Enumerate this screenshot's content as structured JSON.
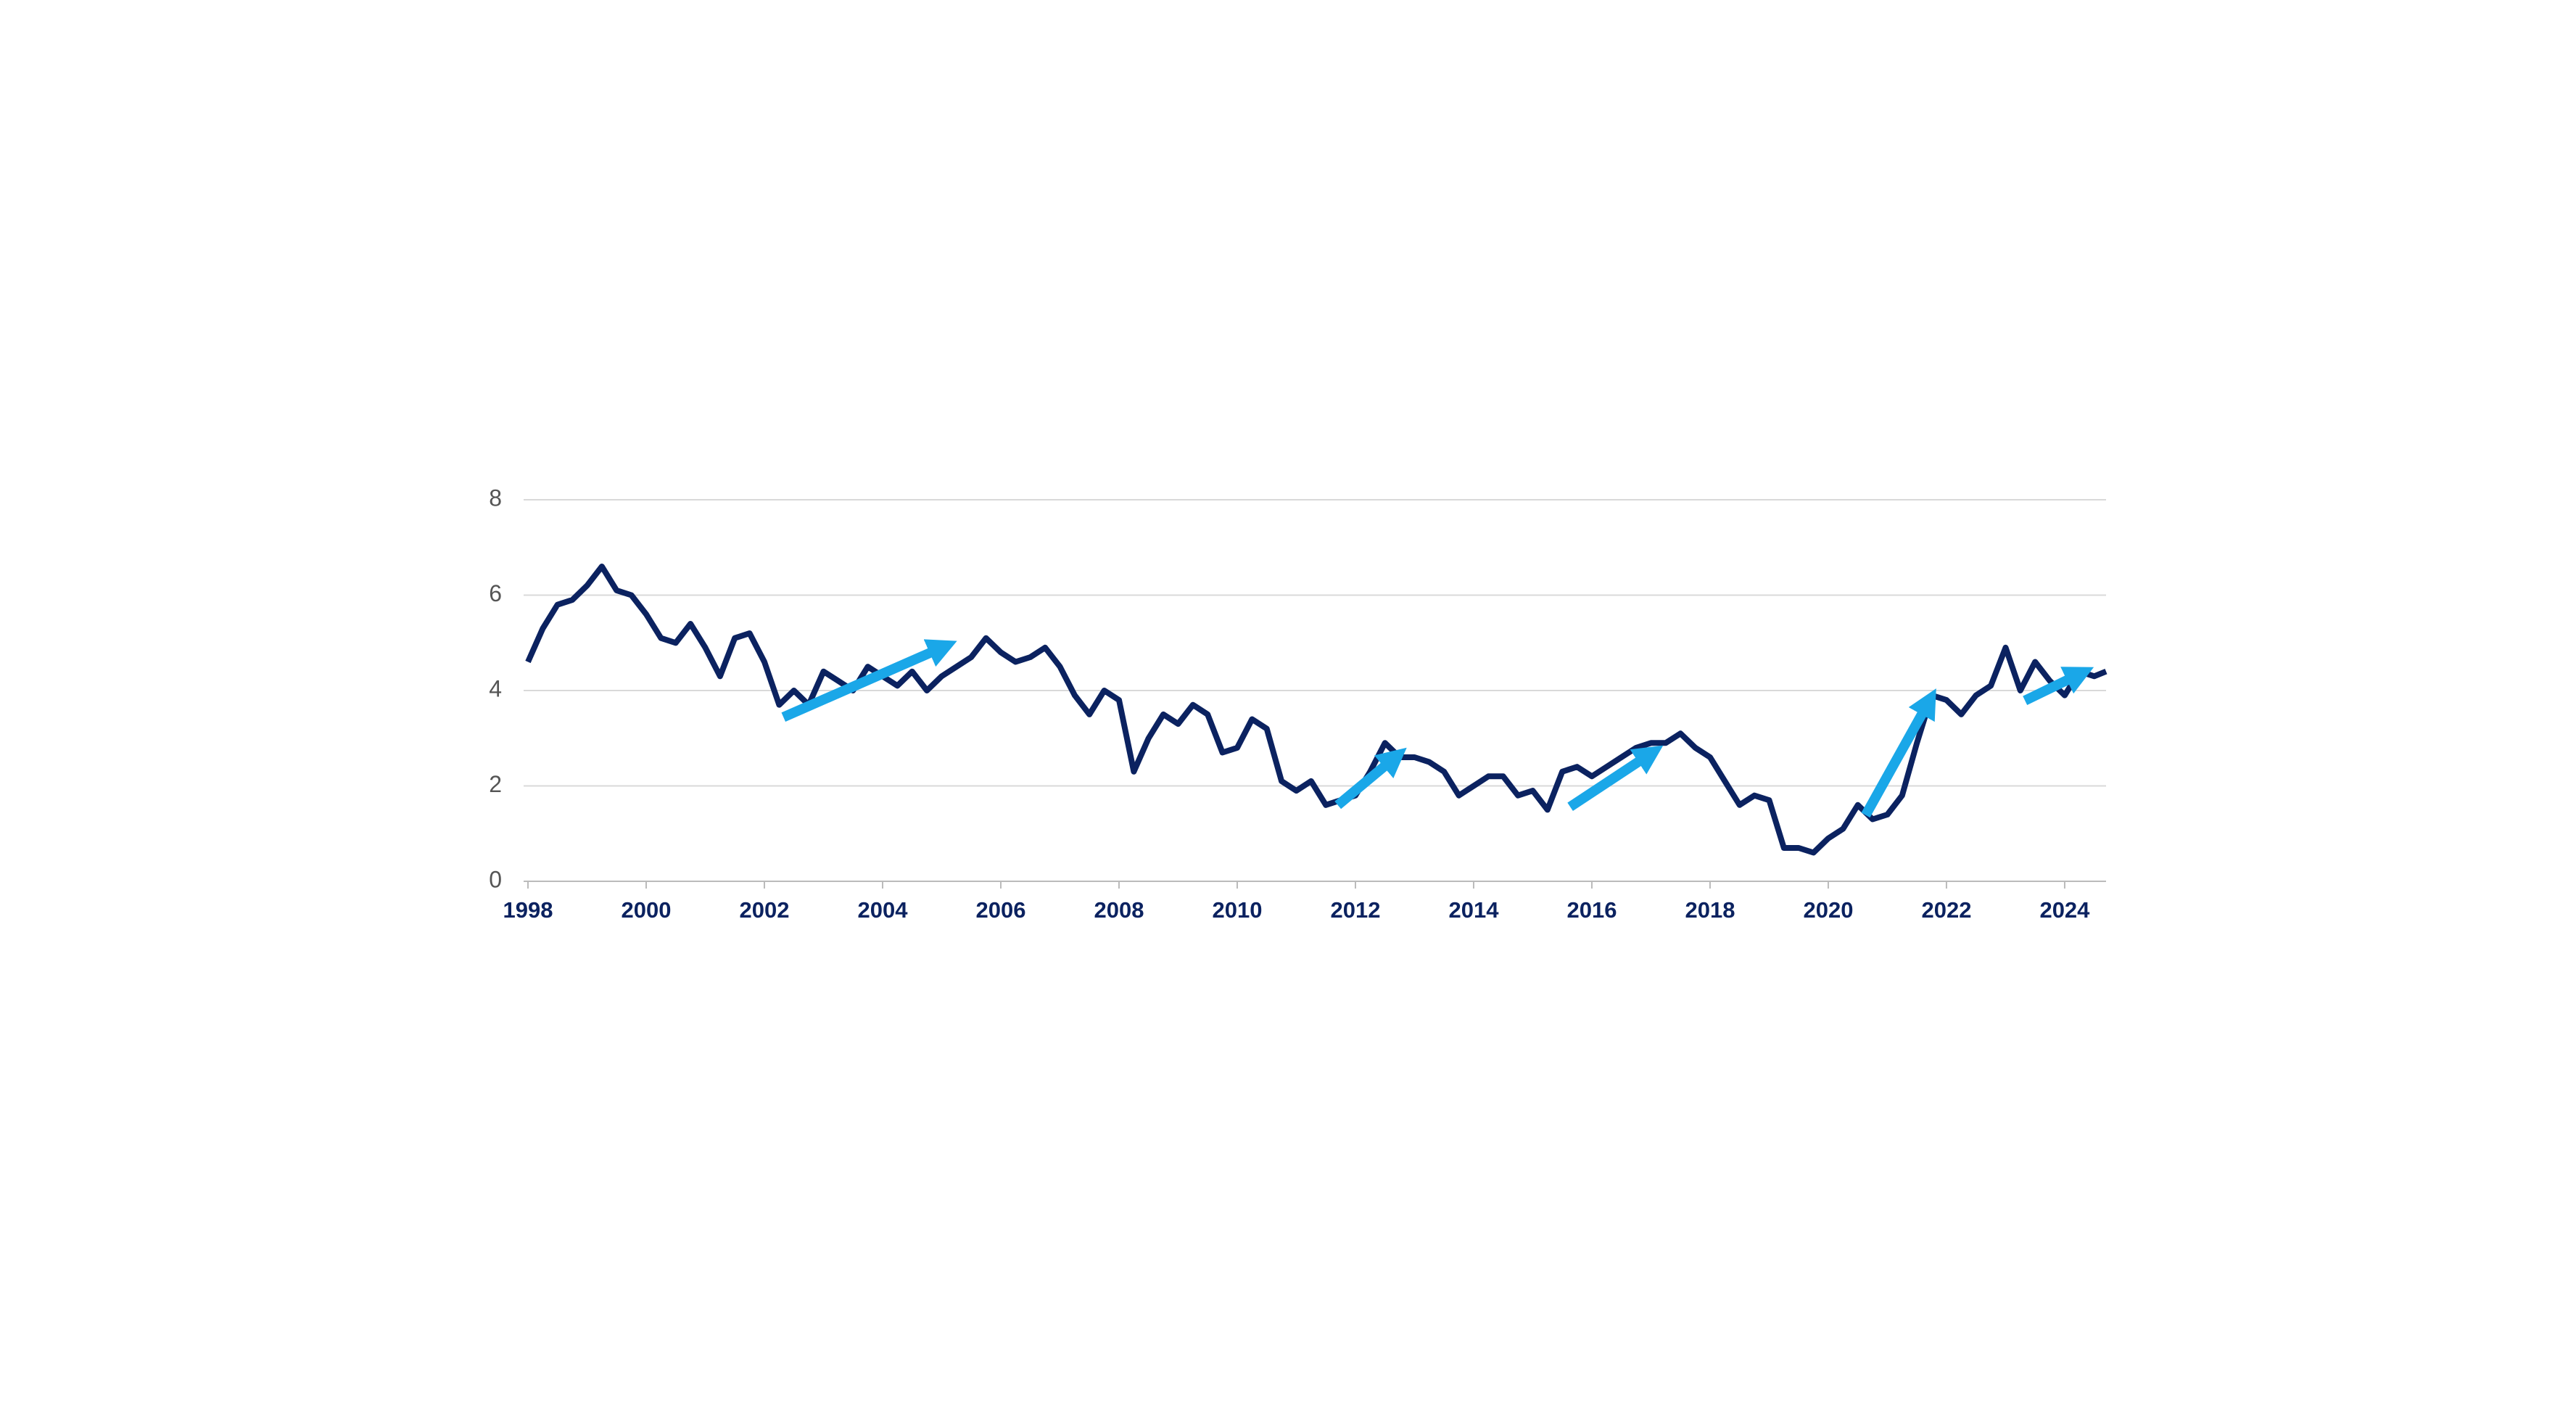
{
  "chart_data": {
    "type": "line",
    "x": [
      1998.0,
      1998.25,
      1998.5,
      1998.75,
      1999.0,
      1999.25,
      1999.5,
      1999.75,
      2000.0,
      2000.25,
      2000.5,
      2000.75,
      2001.0,
      2001.25,
      2001.5,
      2001.75,
      2002.0,
      2002.25,
      2002.5,
      2002.75,
      2003.0,
      2003.25,
      2003.5,
      2003.75,
      2004.0,
      2004.25,
      2004.5,
      2004.75,
      2005.0,
      2005.25,
      2005.5,
      2005.75,
      2006.0,
      2006.25,
      2006.5,
      2006.75,
      2007.0,
      2007.25,
      2007.5,
      2007.75,
      2008.0,
      2008.25,
      2008.5,
      2008.75,
      2009.0,
      2009.25,
      2009.5,
      2009.75,
      2010.0,
      2010.25,
      2010.5,
      2010.75,
      2011.0,
      2011.25,
      2011.5,
      2011.75,
      2012.0,
      2012.25,
      2012.5,
      2012.75,
      2013.0,
      2013.25,
      2013.5,
      2013.75,
      2014.0,
      2014.25,
      2014.5,
      2014.75,
      2015.0,
      2015.25,
      2015.5,
      2015.75,
      2016.0,
      2016.25,
      2016.5,
      2016.75,
      2017.0,
      2017.25,
      2017.5,
      2017.75,
      2018.0,
      2018.25,
      2018.5,
      2018.75,
      2019.0,
      2019.25,
      2019.5,
      2019.75,
      2020.0,
      2020.25,
      2020.5,
      2020.75,
      2021.0,
      2021.25,
      2021.5,
      2021.75,
      2022.0,
      2022.25,
      2022.5,
      2022.75,
      2023.0,
      2023.25,
      2023.5,
      2023.75,
      2024.0,
      2024.25,
      2024.5,
      2024.7
    ],
    "values": [
      4.6,
      5.3,
      5.8,
      5.9,
      6.2,
      6.6,
      6.1,
      6.0,
      5.6,
      5.1,
      5.0,
      5.4,
      4.9,
      4.3,
      5.1,
      5.2,
      4.6,
      3.7,
      4.0,
      3.7,
      4.4,
      4.2,
      4.0,
      4.5,
      4.3,
      4.1,
      4.4,
      4.0,
      4.3,
      4.5,
      4.7,
      5.1,
      4.8,
      4.6,
      4.7,
      4.9,
      4.5,
      3.9,
      3.5,
      4.0,
      3.8,
      2.3,
      3.0,
      3.5,
      3.3,
      3.7,
      3.5,
      2.7,
      2.8,
      3.4,
      3.2,
      2.1,
      1.9,
      2.1,
      1.6,
      1.7,
      1.8,
      2.3,
      2.9,
      2.6,
      2.6,
      2.5,
      2.3,
      1.8,
      2.0,
      2.2,
      2.2,
      1.8,
      1.9,
      1.5,
      2.3,
      2.4,
      2.2,
      2.4,
      2.6,
      2.8,
      2.9,
      2.9,
      3.1,
      2.8,
      2.6,
      2.1,
      1.6,
      1.8,
      1.7,
      0.7,
      0.7,
      0.6,
      0.9,
      1.1,
      1.6,
      1.3,
      1.4,
      1.8,
      2.9,
      3.9,
      3.8,
      3.5,
      3.9,
      4.1,
      4.9,
      4.0,
      4.6,
      4.2,
      3.9,
      4.4,
      4.3,
      4.4
    ],
    "color": "#0b2260",
    "xlim": [
      1998,
      2024.7
    ],
    "xticks": [
      1998,
      2000,
      2002,
      2004,
      2006,
      2008,
      2010,
      2012,
      2014,
      2016,
      2018,
      2020,
      2022,
      2024
    ],
    "ylim": [
      0,
      8
    ],
    "yticks": [
      0,
      2,
      4,
      6,
      8
    ],
    "grid": true
  }
}
